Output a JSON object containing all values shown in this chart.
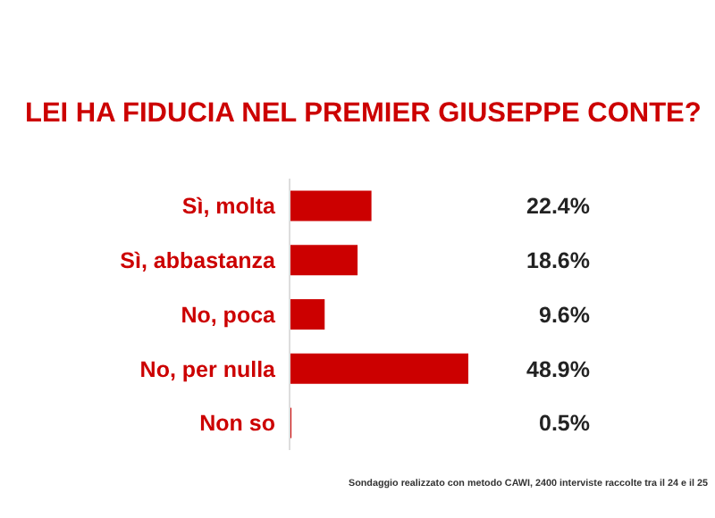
{
  "chart_data": {
    "type": "bar",
    "orientation": "horizontal",
    "title": "LEI HA FIDUCIA NEL PREMIER GIUSEPPE CONTE?",
    "categories": [
      "Sì, molta",
      "Sì, abbastanza",
      "No, poca",
      "No, per nulla",
      "Non so"
    ],
    "values": [
      22.4,
      18.6,
      9.6,
      48.9,
      0.5
    ],
    "value_labels": [
      "22.4%",
      "18.6%",
      "9.6%",
      "48.9%",
      "0.5%"
    ],
    "color": "#cc0000",
    "annotations": [
      "Sondaggio realizzato con metodo CAWI, 2400 interviste raccolte tra il 24 e il 25"
    ]
  }
}
